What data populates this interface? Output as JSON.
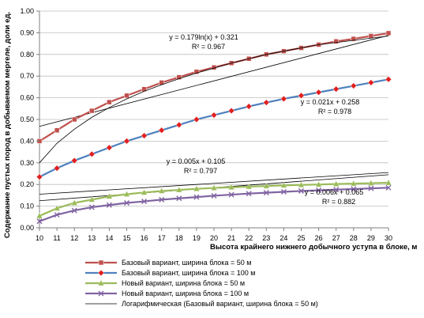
{
  "chart_data": {
    "type": "line",
    "xlabel": "Высота крайнего нижнего добычного уступа в блоке, м",
    "ylabel": "Содержание пустых пород в добываемом мергеле, доли ед.",
    "xlim": [
      10,
      30
    ],
    "ylim": [
      0,
      1
    ],
    "x_ticks": [
      "10",
      "11",
      "12",
      "13",
      "14",
      "15",
      "16",
      "17",
      "18",
      "19",
      "20",
      "21",
      "22",
      "23",
      "24",
      "25",
      "26",
      "27",
      "28",
      "29",
      "30"
    ],
    "y_ticks": [
      "0.00",
      "0.10",
      "0.20",
      "0.30",
      "0.40",
      "0.50",
      "0.60",
      "0.70",
      "0.80",
      "0.90",
      "1.00"
    ],
    "grid": "horizontal",
    "legend_position": "bottom",
    "x": [
      10,
      11,
      12,
      13,
      14,
      15,
      16,
      17,
      18,
      19,
      20,
      21,
      22,
      23,
      24,
      25,
      26,
      27,
      28,
      29,
      30
    ],
    "series": [
      {
        "name": "Базовый вариант, ширина блока = 50 м",
        "color": "#c0504d",
        "marker": "square",
        "values": [
          0.4,
          0.45,
          0.5,
          0.54,
          0.58,
          0.61,
          0.64,
          0.67,
          0.695,
          0.72,
          0.74,
          0.76,
          0.78,
          0.8,
          0.815,
          0.83,
          0.845,
          0.86,
          0.872,
          0.885,
          0.898
        ]
      },
      {
        "name": "Базовый вариант, ширина блока = 100 м",
        "color": "#4f81bd",
        "marker": "diamond",
        "values": [
          0.235,
          0.275,
          0.31,
          0.34,
          0.37,
          0.4,
          0.425,
          0.45,
          0.475,
          0.5,
          0.52,
          0.54,
          0.56,
          0.578,
          0.595,
          0.61,
          0.625,
          0.64,
          0.655,
          0.67,
          0.685
        ]
      },
      {
        "name": "Новый вариант, ширина блока = 50 м",
        "color": "#9bbb59",
        "marker": "triangle",
        "values": [
          0.055,
          0.09,
          0.115,
          0.13,
          0.145,
          0.155,
          0.163,
          0.17,
          0.175,
          0.18,
          0.184,
          0.187,
          0.19,
          0.193,
          0.196,
          0.198,
          0.2,
          0.202,
          0.204,
          0.206,
          0.208
        ]
      },
      {
        "name": "Новый вариант, ширина блока = 100 м",
        "color": "#8064a2",
        "marker": "x",
        "values": [
          0.03,
          0.06,
          0.08,
          0.095,
          0.105,
          0.115,
          0.122,
          0.13,
          0.136,
          0.142,
          0.148,
          0.153,
          0.158,
          0.162,
          0.166,
          0.17,
          0.173,
          0.176,
          0.179,
          0.182,
          0.185
        ]
      },
      {
        "name": "Логарифмическая (Базовый вариант, ширина блока = 50 м)",
        "color": "#000000",
        "marker": "none",
        "trendline": true,
        "values": [
          0.3,
          0.39,
          0.455,
          0.51,
          0.555,
          0.595,
          0.63,
          0.66,
          0.688,
          0.714,
          0.737,
          0.76,
          0.78,
          0.8,
          0.815,
          0.83,
          0.845,
          0.855,
          0.865,
          0.875,
          0.885
        ]
      }
    ],
    "trend_lines": [
      {
        "kind": "linear",
        "values_start_end": [
          0.468,
          0.888
        ]
      },
      {
        "kind": "linear",
        "values_start_end": [
          0.155,
          0.255
        ]
      },
      {
        "kind": "linear",
        "values_start_end": [
          0.125,
          0.245
        ]
      }
    ],
    "annotations": [
      {
        "line1": "y = 0.179ln(x) + 0.321",
        "line2": "R² = 0.967"
      },
      {
        "line1": "y = 0.021x + 0.258",
        "line2": "R² = 0.978"
      },
      {
        "line1": "y = 0.005x + 0.105",
        "line2": "R² = 0.797"
      },
      {
        "line1": "y = 0.006x + 0.065",
        "line2": "R² = 0.882"
      }
    ]
  }
}
